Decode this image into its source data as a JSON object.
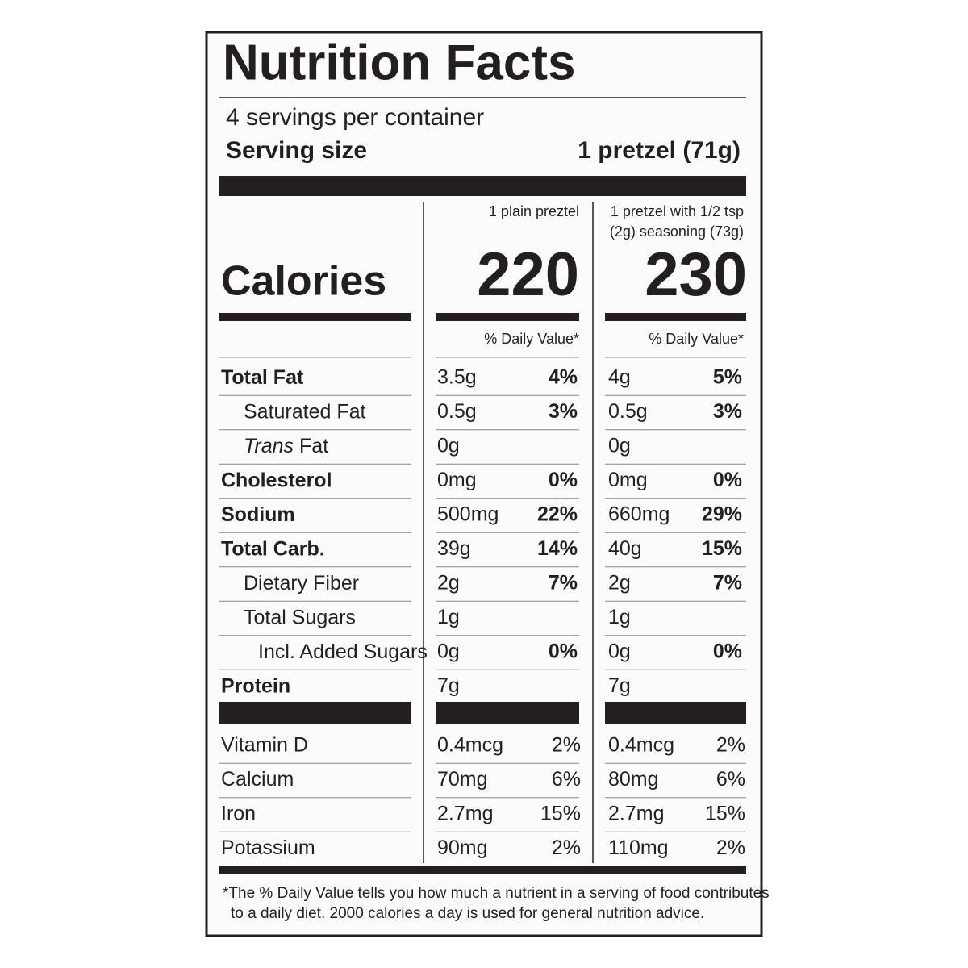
{
  "title": "Nutrition Facts",
  "servings": "4 servings per container",
  "serving_size": {
    "label": "Serving size",
    "value": "1 pretzel (71g)"
  },
  "calories_label": "Calories",
  "dv_header": "% Daily Value*",
  "columns": [
    {
      "header": [
        "1 plain preztel"
      ],
      "calories": "220"
    },
    {
      "header": [
        "1 pretzel with 1/2 tsp",
        "(2g) seasoning (73g)"
      ],
      "calories": "230"
    }
  ],
  "nutrients": [
    {
      "label": "Total Fat",
      "bold": true,
      "indent": 0,
      "cols": [
        [
          "3.5g",
          "4%"
        ],
        [
          "4g",
          "5%"
        ]
      ]
    },
    {
      "label": "Saturated Fat",
      "bold": false,
      "indent": 1,
      "cols": [
        [
          "0.5g",
          "3%"
        ],
        [
          "0.5g",
          "3%"
        ]
      ]
    },
    {
      "label_italic": "Trans",
      "label": "Fat",
      "bold": false,
      "indent": 1,
      "cols": [
        [
          "0g"
        ],
        [
          "0g"
        ]
      ]
    },
    {
      "label": "Cholesterol",
      "bold": true,
      "indent": 0,
      "cols": [
        [
          "0mg",
          "0%"
        ],
        [
          "0mg",
          "0%"
        ]
      ]
    },
    {
      "label": "Sodium",
      "bold": true,
      "indent": 0,
      "cols": [
        [
          "500mg",
          "22%"
        ],
        [
          "660mg",
          "29%"
        ]
      ]
    },
    {
      "label": "Total Carb.",
      "bold": true,
      "indent": 0,
      "cols": [
        [
          "39g",
          "14%"
        ],
        [
          "40g",
          "15%"
        ]
      ]
    },
    {
      "label": "Dietary Fiber",
      "bold": false,
      "indent": 1,
      "cols": [
        [
          "2g",
          "7%"
        ],
        [
          "2g",
          "7%"
        ]
      ]
    },
    {
      "label": "Total Sugars",
      "bold": false,
      "indent": 1,
      "cols": [
        [
          "1g"
        ],
        [
          "1g"
        ]
      ]
    },
    {
      "label": "Incl. Added Sugars",
      "bold": false,
      "indent": 2,
      "cols": [
        [
          "0g",
          "0%"
        ],
        [
          "0g",
          "0%"
        ]
      ]
    },
    {
      "label": "Protein",
      "bold": true,
      "indent": 0,
      "cols": [
        [
          "7g"
        ],
        [
          "7g"
        ]
      ]
    }
  ],
  "vitamins": [
    {
      "label": "Vitamin D",
      "cols": [
        [
          "0.4mcg",
          "2%"
        ],
        [
          "0.4mcg",
          "2%"
        ]
      ]
    },
    {
      "label": "Calcium",
      "cols": [
        [
          "70mg",
          "6%"
        ],
        [
          "80mg",
          "6%"
        ]
      ]
    },
    {
      "label": "Iron",
      "cols": [
        [
          "2.7mg",
          "15%"
        ],
        [
          "2.7mg",
          "15%"
        ]
      ]
    },
    {
      "label": "Potassium",
      "cols": [
        [
          "90mg",
          "2%"
        ],
        [
          "110mg",
          "2%"
        ]
      ]
    }
  ],
  "footnote": [
    "*The % Daily Value tells you how much a nutrient in a serving of food contributes",
    "to a daily diet. 2000 calories a day is used for general nutrition advice."
  ]
}
